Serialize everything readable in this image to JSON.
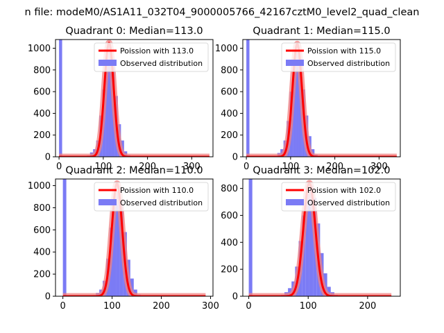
{
  "figure": {
    "suptitle": "n file: modeM0/AS1A11_032T04_9000005766_42167cztM0_level2_quad_clean"
  },
  "colors": {
    "fit_line": "#ff0000",
    "fit_band": "#f08080",
    "hist": "#7b7bf5",
    "axes": "#000000"
  },
  "chart_data": [
    {
      "type": "bar",
      "title": "Quadrant 0: Median=113.0",
      "xlim": [
        -8,
        348
      ],
      "ylim": [
        0,
        1080
      ],
      "xticks": [
        0,
        100,
        200,
        300
      ],
      "yticks": [
        0,
        200,
        400,
        600,
        800,
        1000
      ],
      "xlabel": "",
      "ylabel": "",
      "legend": {
        "placement": "top-right",
        "line_label": "Poission with 113.0",
        "hist_label": "Observed distribution"
      },
      "poisson_mean": 113.0,
      "fit_peak": 1050,
      "fit_x_range": [
        0,
        340
      ],
      "bin_width": 7,
      "hist_bins": [
        {
          "x": 0,
          "count": 1080
        },
        {
          "x": 63,
          "count": 12
        },
        {
          "x": 70,
          "count": 40
        },
        {
          "x": 77,
          "count": 70
        },
        {
          "x": 84,
          "count": 150
        },
        {
          "x": 91,
          "count": 380
        },
        {
          "x": 98,
          "count": 620
        },
        {
          "x": 105,
          "count": 900
        },
        {
          "x": 112,
          "count": 1010
        },
        {
          "x": 119,
          "count": 830
        },
        {
          "x": 126,
          "count": 560
        },
        {
          "x": 133,
          "count": 300
        },
        {
          "x": 140,
          "count": 150
        },
        {
          "x": 147,
          "count": 50
        },
        {
          "x": 154,
          "count": 15
        }
      ]
    },
    {
      "type": "bar",
      "title": "Quadrant 1: Median=115.0",
      "xlim": [
        -8,
        348
      ],
      "ylim": [
        0,
        1080
      ],
      "xticks": [
        0,
        100,
        200,
        300
      ],
      "yticks": [
        0,
        200,
        400,
        600,
        800,
        1000
      ],
      "xlabel": "",
      "ylabel": "",
      "legend": {
        "placement": "top-right",
        "line_label": "Poission with 115.0",
        "hist_label": "Observed distribution"
      },
      "poisson_mean": 115.0,
      "fit_peak": 1040,
      "fit_x_range": [
        0,
        340
      ],
      "bin_width": 7,
      "hist_bins": [
        {
          "x": 0,
          "count": 1080
        },
        {
          "x": 63,
          "count": 10
        },
        {
          "x": 70,
          "count": 35
        },
        {
          "x": 77,
          "count": 70
        },
        {
          "x": 84,
          "count": 150
        },
        {
          "x": 91,
          "count": 330
        },
        {
          "x": 98,
          "count": 600
        },
        {
          "x": 105,
          "count": 860
        },
        {
          "x": 112,
          "count": 980
        },
        {
          "x": 119,
          "count": 900
        },
        {
          "x": 126,
          "count": 620
        },
        {
          "x": 133,
          "count": 380
        },
        {
          "x": 140,
          "count": 190
        },
        {
          "x": 147,
          "count": 70
        },
        {
          "x": 154,
          "count": 20
        }
      ]
    },
    {
      "type": "bar",
      "title": "Quadrant 2: Median=110.0",
      "xlim": [
        -15,
        305
      ],
      "ylim": [
        0,
        1060
      ],
      "xticks": [
        0,
        100,
        200,
        300
      ],
      "yticks": [
        0,
        200,
        400,
        600,
        800,
        1000
      ],
      "xlabel": "",
      "ylabel": "",
      "legend": {
        "placement": "top-right",
        "line_label": "Poission with 110.0",
        "hist_label": "Observed distribution"
      },
      "poisson_mean": 110.0,
      "fit_peak": 1020,
      "fit_x_range": [
        0,
        290
      ],
      "bin_width": 7,
      "hist_bins": [
        {
          "x": 0,
          "count": 1060
        },
        {
          "x": 60,
          "count": 10
        },
        {
          "x": 67,
          "count": 30
        },
        {
          "x": 74,
          "count": 60
        },
        {
          "x": 81,
          "count": 140
        },
        {
          "x": 88,
          "count": 340
        },
        {
          "x": 95,
          "count": 620
        },
        {
          "x": 102,
          "count": 850
        },
        {
          "x": 109,
          "count": 960
        },
        {
          "x": 116,
          "count": 840
        },
        {
          "x": 123,
          "count": 580
        },
        {
          "x": 130,
          "count": 330
        },
        {
          "x": 137,
          "count": 160
        },
        {
          "x": 144,
          "count": 60
        },
        {
          "x": 151,
          "count": 15
        }
      ]
    },
    {
      "type": "bar",
      "title": "Quadrant 3: Median=102.0",
      "xlim": [
        -10,
        255
      ],
      "ylim": [
        0,
        870
      ],
      "xticks": [
        0,
        100,
        200
      ],
      "yticks": [
        0,
        200,
        400,
        600,
        800
      ],
      "xlabel": "",
      "ylabel": "",
      "legend": {
        "placement": "top-right",
        "line_label": "Poission with 102.0",
        "hist_label": "Observed distribution"
      },
      "poisson_mean": 102.0,
      "fit_peak": 840,
      "fit_x_range": [
        0,
        240
      ],
      "bin_width": 6,
      "hist_bins": [
        {
          "x": 0,
          "count": 870
        },
        {
          "x": 54,
          "count": 10
        },
        {
          "x": 60,
          "count": 30
        },
        {
          "x": 66,
          "count": 60
        },
        {
          "x": 72,
          "count": 110
        },
        {
          "x": 78,
          "count": 220
        },
        {
          "x": 84,
          "count": 410
        },
        {
          "x": 90,
          "count": 600
        },
        {
          "x": 96,
          "count": 760
        },
        {
          "x": 102,
          "count": 820
        },
        {
          "x": 108,
          "count": 730
        },
        {
          "x": 114,
          "count": 540
        },
        {
          "x": 120,
          "count": 320
        },
        {
          "x": 126,
          "count": 170
        },
        {
          "x": 132,
          "count": 70
        },
        {
          "x": 138,
          "count": 30
        },
        {
          "x": 144,
          "count": 10
        }
      ]
    }
  ]
}
